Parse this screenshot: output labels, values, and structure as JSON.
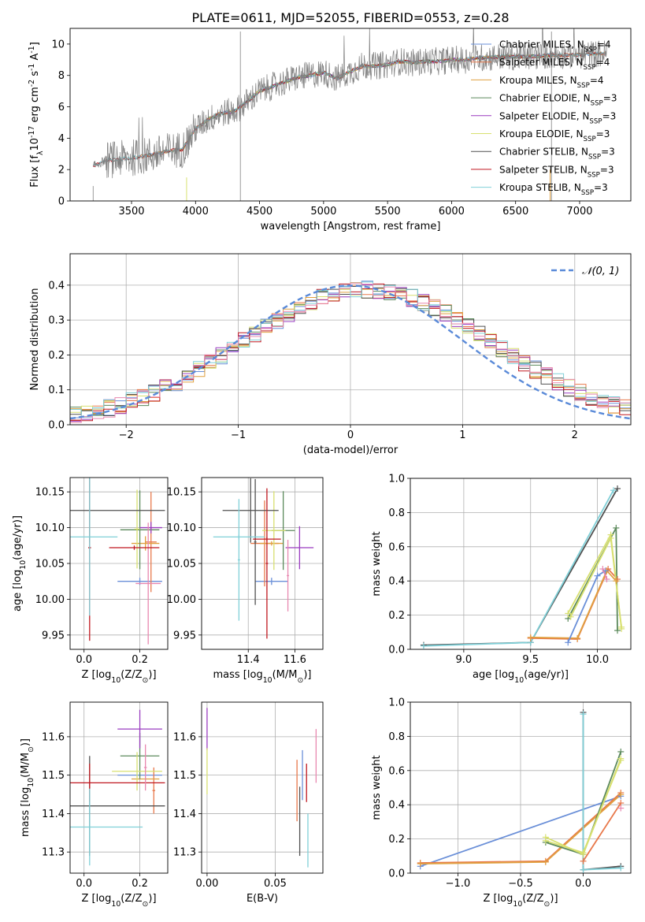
{
  "figure_title": "PLATE=0611, MJD=52055, FIBERID=0553, z=0.28",
  "colors": {
    "chabrier_miles": "#6a8fd8",
    "salpeter_miles": "#e8784a",
    "kroupa_miles": "#e0a040",
    "chabrier_elodie": "#5c8a5c",
    "salpeter_elodie": "#9a3cc0",
    "kroupa_elodie": "#d8e070",
    "chabrier_stelib": "#505050",
    "salpeter_stelib": "#c01820",
    "kroupa_stelib": "#80d0d8",
    "pink": "#e888b0",
    "normal_curve": "#5a8ad8",
    "spectrum": "#808080"
  },
  "chart_data": [
    {
      "id": "spectrum",
      "type": "line",
      "xlabel": "wavelength [Angstrom, rest frame]",
      "ylabel": "Flux [f$_\\lambda$10$^{-17}$ erg cm$^{-2}$ s$^{-1}$ A$^{-1}$]",
      "xlim": [
        3020,
        7400
      ],
      "ylim": [
        0,
        11
      ],
      "xticks": [
        3500,
        4000,
        4500,
        5000,
        5500,
        6000,
        6500,
        7000
      ],
      "yticks": [
        0,
        2,
        4,
        6,
        8,
        10
      ],
      "legend_position": "top-right",
      "series": [
        {
          "name": "Chabrier MILES, N$_{SSP}$=4",
          "color_key": "chabrier_miles"
        },
        {
          "name": "Salpeter MILES, N$_{SSP}$=4",
          "color_key": "salpeter_miles"
        },
        {
          "name": "Kroupa MILES, N$_{SSP}$=4",
          "color_key": "kroupa_miles"
        },
        {
          "name": "Chabrier ELODIE, N$_{SSP}$=3",
          "color_key": "chabrier_elodie"
        },
        {
          "name": "Salpeter ELODIE, N$_{SSP}$=3",
          "color_key": "salpeter_elodie"
        },
        {
          "name": "Kroupa ELODIE, N$_{SSP}$=3",
          "color_key": "kroupa_elodie"
        },
        {
          "name": "Chabrier STELIB, N$_{SSP}$=3",
          "color_key": "chabrier_stelib"
        },
        {
          "name": "Salpeter STELIB, N$_{SSP}$=3",
          "color_key": "salpeter_stelib"
        },
        {
          "name": "Kroupa STELIB, N$_{SSP}$=3",
          "color_key": "kroupa_stelib"
        }
      ],
      "continuum": {
        "x": [
          3200,
          3300,
          3450,
          3550,
          3700,
          3800,
          3900,
          4000,
          4100,
          4200,
          4300,
          4400,
          4500,
          4600,
          4700,
          4800,
          4900,
          5000,
          5100,
          5200,
          5300,
          5400,
          5500,
          5600,
          5700,
          5800,
          5900,
          6000,
          6100,
          6200,
          6400,
          6600,
          6800,
          7000,
          7200
        ],
        "y": [
          2.2,
          2.6,
          2.7,
          2.8,
          3.0,
          3.2,
          3.3,
          4.6,
          5.2,
          5.6,
          5.7,
          6.3,
          7.0,
          7.3,
          7.6,
          7.9,
          8.0,
          8.2,
          7.8,
          8.2,
          8.6,
          8.6,
          8.7,
          8.9,
          8.8,
          8.9,
          8.9,
          9.0,
          9.0,
          9.1,
          9.2,
          9.2,
          9.3,
          9.3,
          9.4
        ]
      }
    },
    {
      "id": "residual_histogram",
      "type": "line",
      "xlabel": "(data-model)/error",
      "ylabel": "Normed distribution",
      "xlim": [
        -2.5,
        2.5
      ],
      "ylim": [
        0,
        0.49
      ],
      "xticks": [
        -2,
        -1,
        0,
        1,
        2
      ],
      "yticks": [
        0.0,
        0.1,
        0.2,
        0.3,
        0.4
      ],
      "grid": true,
      "legend_position": "top-right",
      "normal_label": "𝒩(0, 1)",
      "bin_width": 0.1,
      "bin_start": -2.5,
      "base_heights": [
        0.018,
        0.022,
        0.026,
        0.03,
        0.036,
        0.046,
        0.054,
        0.062,
        0.072,
        0.082,
        0.095,
        0.108,
        0.12,
        0.135,
        0.15,
        0.165,
        0.182,
        0.198,
        0.215,
        0.232,
        0.252,
        0.268,
        0.288,
        0.305,
        0.322,
        0.34,
        0.355,
        0.372,
        0.385,
        0.395,
        0.405,
        0.41,
        0.412,
        0.418,
        0.42,
        0.415,
        0.405,
        0.398,
        0.39,
        0.378,
        0.362,
        0.348,
        0.335,
        0.318,
        0.305,
        0.292,
        0.275,
        0.26,
        0.243,
        0.228,
        0.21,
        0.19,
        0.172,
        0.155,
        0.138,
        0.12,
        0.104,
        0.09,
        0.078,
        0.066,
        0.056,
        0.047,
        0.04,
        0.034,
        0.028,
        0.024,
        0.02,
        0.017,
        0.015,
        0.013,
        0.011,
        0.01,
        0.01,
        0.01,
        0.009,
        0.009,
        0.009,
        0.008,
        0.008,
        0.008,
        0.008,
        0.007,
        0.007,
        0.007,
        0.007,
        0.006,
        0.006,
        0.006,
        0.006,
        0.006,
        0.005,
        0.005,
        0.005,
        0.005,
        0.005,
        0.005,
        0.005,
        0.005,
        0.005,
        0.005
      ]
    },
    {
      "id": "age_vs_Z",
      "type": "scatter",
      "xlabel": "Z [log$_{10}$(Z/Z$_\\odot$)]",
      "ylabel": "age  [log$_{10}$(age/yr)]",
      "xlim": [
        -0.05,
        0.3
      ],
      "ylim": [
        9.93,
        10.17
      ],
      "xticks": [
        0.0,
        0.2
      ],
      "yticks": [
        9.95,
        10.0,
        10.05,
        10.1,
        10.15
      ],
      "grid": true,
      "errorbars": [
        {
          "color_key": "chabrier_miles",
          "x": 0.2,
          "xerr": 0.08,
          "y": 10.025,
          "yerr": 0.005
        },
        {
          "color_key": "salpeter_miles",
          "x": 0.24,
          "xerr": 0.02,
          "y": 10.08,
          "yerr": 0.07
        },
        {
          "color_key": "kroupa_miles",
          "x": 0.22,
          "xerr": 0.05,
          "y": 10.078,
          "yerr": 0.01
        },
        {
          "color_key": "chabrier_elodie",
          "x": 0.2,
          "xerr": 0.07,
          "y": 10.097,
          "yerr": 0.055
        },
        {
          "color_key": "salpeter_elodie",
          "x": 0.24,
          "xerr": 0.04,
          "y": 10.1,
          "yerr": 0.008
        },
        {
          "color_key": "kroupa_elodie",
          "x": 0.19,
          "xerr": 0.01,
          "y": 10.098,
          "yerr": 0.055
        },
        {
          "color_key": "chabrier_stelib",
          "x": 0.02,
          "xerr": 0.27,
          "y": 10.124,
          "yerr": 0.045
        },
        {
          "color_key": "salpeter_stelib",
          "x": 0.02,
          "xerr": 0.005,
          "y": 10.072,
          "yerr": 0.13
        },
        {
          "color_key": "kroupa_stelib",
          "x": 0.02,
          "xerr": 0.1,
          "y": 10.087,
          "yerr": 0.11
        },
        {
          "color_key": "pink",
          "x": 0.23,
          "xerr": 0.045,
          "y": 10.022,
          "yerr": 0.085
        },
        {
          "color_key": "salpeter_stelib",
          "x": 0.18,
          "xerr": 0.09,
          "y": 10.072,
          "yerr": 0.003
        }
      ]
    },
    {
      "id": "age_vs_mass",
      "type": "scatter",
      "xlabel": "mass [log$_{10}$(M/M$_\\odot$)]",
      "ylabel": "",
      "xlim": [
        11.2,
        11.72
      ],
      "ylim": [
        9.93,
        10.17
      ],
      "xticks": [
        11.4,
        11.6
      ],
      "yticks": [
        9.95,
        10.0,
        10.05,
        10.1,
        10.15
      ],
      "grid": true,
      "errorbars": [
        {
          "color_key": "chabrier_miles",
          "x": 11.5,
          "xerr": 0.07,
          "y": 10.025,
          "yerr": 0.005
        },
        {
          "color_key": "salpeter_miles",
          "x": 11.47,
          "xerr": 0.06,
          "y": 10.078,
          "yerr": 0.06
        },
        {
          "color_key": "kroupa_miles",
          "x": 11.5,
          "xerr": 0.05,
          "y": 10.078,
          "yerr": 0.003
        },
        {
          "color_key": "chabrier_elodie",
          "x": 11.55,
          "xerr": 0.05,
          "y": 10.096,
          "yerr": 0.055
        },
        {
          "color_key": "salpeter_elodie",
          "x": 11.62,
          "xerr": 0.06,
          "y": 10.072,
          "yerr": 0.03
        },
        {
          "color_key": "kroupa_elodie",
          "x": 11.51,
          "xerr": 0.05,
          "y": 10.096,
          "yerr": 0.055
        },
        {
          "color_key": "chabrier_stelib",
          "x": 11.41,
          "xerr": 0.12,
          "y": 10.124,
          "yerr": 0.045
        },
        {
          "color_key": "chabrier_stelib",
          "x": 11.43,
          "xerr": 0.005,
          "y": 10.08,
          "yerr": 0.088
        },
        {
          "color_key": "salpeter_stelib",
          "x": 11.48,
          "xerr": 0.06,
          "y": 10.084,
          "yerr": 0.003
        },
        {
          "color_key": "salpeter_stelib",
          "x": 11.48,
          "xerr": 0.005,
          "y": 10.05,
          "yerr": 0.105
        },
        {
          "color_key": "kroupa_stelib",
          "x": 11.36,
          "xerr": 0.11,
          "y": 10.087,
          "yerr": 0.003
        },
        {
          "color_key": "kroupa_stelib",
          "x": 11.36,
          "xerr": 0.005,
          "y": 10.055,
          "yerr": 0.085
        },
        {
          "color_key": "pink",
          "x": 11.57,
          "xerr": 0.005,
          "y": 10.033,
          "yerr": 0.05
        }
      ]
    },
    {
      "id": "massweight_vs_age",
      "type": "line",
      "xlabel": "age  [log$_{10}$(age/yr)]",
      "ylabel": "mass weight",
      "xlim": [
        8.6,
        10.25
      ],
      "ylim": [
        0,
        1.0
      ],
      "xticks": [
        9.0,
        9.5,
        10.0
      ],
      "yticks": [
        0.0,
        0.2,
        0.4,
        0.6,
        0.8,
        1.0
      ],
      "grid": true,
      "series": [
        {
          "color_key": "chabrier_stelib",
          "x": [
            8.7,
            9.5,
            10.15
          ],
          "y": [
            0.025,
            0.04,
            0.94
          ]
        },
        {
          "color_key": "kroupa_stelib",
          "x": [
            8.7,
            9.5,
            10.12
          ],
          "y": [
            0.02,
            0.04,
            0.93
          ]
        },
        {
          "color_key": "salpeter_miles",
          "x": [
            9.5,
            9.85,
            10.08,
            10.15
          ],
          "y": [
            0.065,
            0.06,
            0.47,
            0.41
          ]
        },
        {
          "color_key": "kroupa_miles",
          "x": [
            9.5,
            9.85,
            10.07,
            10.14
          ],
          "y": [
            0.07,
            0.065,
            0.46,
            0.4
          ]
        },
        {
          "color_key": "chabrier_miles",
          "x": [
            9.78,
            10.0,
            10.06
          ],
          "y": [
            0.04,
            0.43,
            0.46
          ]
        },
        {
          "color_key": "pink",
          "x": [
            10.04,
            10.07
          ],
          "y": [
            0.47,
            0.41
          ]
        },
        {
          "color_key": "chabrier_elodie",
          "x": [
            9.78,
            10.14,
            10.15
          ],
          "y": [
            0.18,
            0.71,
            0.11
          ]
        },
        {
          "color_key": "kroupa_elodie",
          "x": [
            9.78,
            10.1,
            10.18
          ],
          "y": [
            0.21,
            0.67,
            0.12
          ]
        },
        {
          "color_key": "kroupa_elodie",
          "x": [
            9.8,
            10.1,
            10.18
          ],
          "y": [
            0.19,
            0.65,
            0.13
          ]
        }
      ]
    },
    {
      "id": "mass_vs_Z",
      "type": "scatter",
      "xlabel": "Z [log$_{10}$(Z/Z$_\\odot$)]",
      "ylabel": "mass [log$_{10}$(M/M$_\\odot$)]",
      "xlim": [
        -0.05,
        0.3
      ],
      "ylim": [
        11.245,
        11.69
      ],
      "xticks": [
        0.0,
        0.2
      ],
      "yticks": [
        11.3,
        11.4,
        11.5,
        11.6
      ],
      "grid": true,
      "errorbars": [
        {
          "color_key": "chabrier_miles",
          "x": 0.2,
          "xerr": 0.08,
          "y": 11.5,
          "yerr": 0.003
        },
        {
          "color_key": "salpeter_miles",
          "x": 0.25,
          "xerr": 0.005,
          "y": 11.46,
          "yerr": 0.06
        },
        {
          "color_key": "kroupa_miles",
          "x": 0.22,
          "xerr": 0.05,
          "y": 11.49,
          "yerr": 0.003
        },
        {
          "color_key": "chabrier_elodie",
          "x": 0.2,
          "xerr": 0.07,
          "y": 11.55,
          "yerr": 0.06
        },
        {
          "color_key": "salpeter_elodie",
          "x": 0.2,
          "xerr": 0.08,
          "y": 11.62,
          "yerr": 0.05
        },
        {
          "color_key": "kroupa_elodie",
          "x": 0.19,
          "xerr": 0.09,
          "y": 11.51,
          "yerr": 0.05
        },
        {
          "color_key": "chabrier_stelib",
          "x": 0.02,
          "xerr": 0.27,
          "y": 11.42,
          "yerr": 0.13
        },
        {
          "color_key": "salpeter_stelib",
          "x": 0.02,
          "xerr": 0.27,
          "y": 11.48,
          "yerr": 0.05
        },
        {
          "color_key": "kroupa_stelib",
          "x": 0.02,
          "xerr": 0.19,
          "y": 11.365,
          "yerr": 0.1
        },
        {
          "color_key": "pink",
          "x": 0.22,
          "xerr": 0.005,
          "y": 11.52,
          "yerr": 0.06
        }
      ]
    },
    {
      "id": "mass_vs_ebv",
      "type": "scatter",
      "xlabel": "E(B-V)",
      "ylabel": "",
      "xlim": [
        -0.004,
        0.085
      ],
      "ylim": [
        11.245,
        11.69
      ],
      "xticks": [
        0.0,
        0.05
      ],
      "yticks": [
        11.3,
        11.4,
        11.5,
        11.6
      ],
      "grid": true,
      "errorbars": [
        {
          "color_key": "chabrier_miles",
          "x": 0.07,
          "xerr": 0.0,
          "y": 11.5,
          "yerr": 0.065
        },
        {
          "color_key": "salpeter_miles",
          "x": 0.066,
          "xerr": 0.0,
          "y": 11.46,
          "yerr": 0.08
        },
        {
          "color_key": "salpeter_elodie",
          "x": 0.0,
          "xerr": 0.0,
          "y": 11.62,
          "yerr": 0.055
        },
        {
          "color_key": "kroupa_elodie",
          "x": 0.0,
          "xerr": 0.0,
          "y": 11.51,
          "yerr": 0.06
        },
        {
          "color_key": "chabrier_stelib",
          "x": 0.068,
          "xerr": 0.0,
          "y": 11.38,
          "yerr": 0.09
        },
        {
          "color_key": "salpeter_stelib",
          "x": 0.073,
          "xerr": 0.0,
          "y": 11.48,
          "yerr": 0.05
        },
        {
          "color_key": "kroupa_stelib",
          "x": 0.074,
          "xerr": 0.0,
          "y": 11.33,
          "yerr": 0.07
        },
        {
          "color_key": "pink",
          "x": 0.08,
          "xerr": 0.0,
          "y": 11.55,
          "yerr": 0.07
        }
      ]
    },
    {
      "id": "massweight_vs_Z",
      "type": "line",
      "xlabel": "Z [log$_{10}$(Z/Z$_\\odot$)]",
      "ylabel": "mass weight",
      "xlim": [
        -1.38,
        0.38
      ],
      "ylim": [
        0,
        1.0
      ],
      "xticks": [
        -1.0,
        -0.5,
        0.0
      ],
      "yticks": [
        0.0,
        0.2,
        0.4,
        0.6,
        0.8,
        1.0
      ],
      "grid": true,
      "series": [
        {
          "color_key": "chabrier_miles",
          "x": [
            -1.3,
            0.3
          ],
          "y": [
            0.04,
            0.45
          ]
        },
        {
          "color_key": "salpeter_miles",
          "x": [
            -1.3,
            -0.3,
            0.3
          ],
          "y": [
            0.06,
            0.07,
            0.47
          ]
        },
        {
          "color_key": "kroupa_miles",
          "x": [
            -1.3,
            -0.3,
            0.3
          ],
          "y": [
            0.055,
            0.065,
            0.46
          ]
        },
        {
          "color_key": "salpeter_miles",
          "x": [
            0.0,
            0.3
          ],
          "y": [
            0.07,
            0.41
          ]
        },
        {
          "color_key": "chabrier_stelib",
          "x": [
            0.0,
            0.0,
            0.3
          ],
          "y": [
            0.94,
            0.02,
            0.04
          ]
        },
        {
          "color_key": "kroupa_stelib",
          "x": [
            0.0,
            0.0,
            0.3
          ],
          "y": [
            0.93,
            0.02,
            0.03
          ]
        },
        {
          "color_key": "chabrier_elodie",
          "x": [
            -0.3,
            0.0,
            0.3
          ],
          "y": [
            0.18,
            0.11,
            0.71
          ]
        },
        {
          "color_key": "kroupa_elodie",
          "x": [
            -0.3,
            0.0,
            0.3
          ],
          "y": [
            0.21,
            0.11,
            0.67
          ]
        },
        {
          "color_key": "kroupa_elodie",
          "x": [
            -0.3,
            0.0,
            0.3
          ],
          "y": [
            0.19,
            0.12,
            0.66
          ]
        },
        {
          "color_key": "pink",
          "x": [
            0.3
          ],
          "y": [
            0.38
          ]
        }
      ]
    }
  ]
}
